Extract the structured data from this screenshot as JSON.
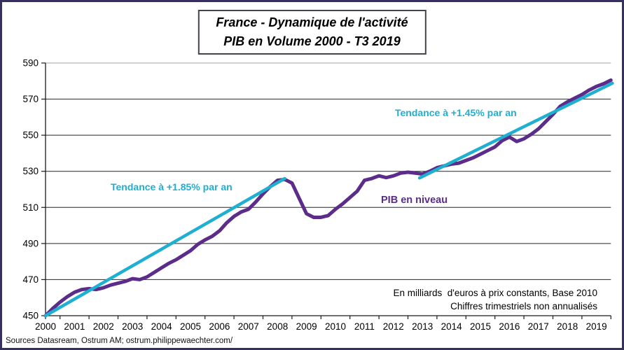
{
  "frame": {
    "border_color": "#36305f",
    "background": "#ffffff"
  },
  "title": {
    "line1": "France - Dynamique de l'activité",
    "line2": "PIB en Volume 2000 - T3 2019"
  },
  "annotations": {
    "trend1_label": "Tendance à +1.85% par an",
    "trend2_label": "Tendance à +1.45% par an",
    "series_label": "PIB en niveau",
    "unit_line1": "En milliards  d'euros à prix constants, Base 2010",
    "unit_line2": "Chiffres trimestriels non annualisés"
  },
  "source": "Sources Datasream, Ostrum AM; ostrum.philippewaechter.com/",
  "chart_data": {
    "type": "line",
    "title": "France - Dynamique de l'activité PIB en Volume 2000 - T3 2019",
    "x_frequency": "quarterly",
    "x_range_label": "2000 - T3 2019",
    "xticks": [
      2000,
      2001,
      2002,
      2003,
      2004,
      2005,
      2006,
      2007,
      2008,
      2009,
      2010,
      2011,
      2012,
      2013,
      2014,
      2015,
      2016,
      2017,
      2018,
      2019
    ],
    "ylim": [
      450,
      590
    ],
    "yticks": [
      450,
      470,
      490,
      510,
      530,
      550,
      570,
      590
    ],
    "grid": "horizontal",
    "legend": "inline-labels",
    "series": [
      {
        "name": "PIB en niveau",
        "color": "#5B2C8A",
        "start": "2000-Q1",
        "end": "2019-Q3",
        "values": [
          450.0,
          454.0,
          457.5,
          460.5,
          463.0,
          464.5,
          465.0,
          464.5,
          465.5,
          467.0,
          468.0,
          469.0,
          470.5,
          470.0,
          471.5,
          474.0,
          476.5,
          479.0,
          481.0,
          483.5,
          486.0,
          489.5,
          492.0,
          494.0,
          497.0,
          501.5,
          505.0,
          507.5,
          509.0,
          513.0,
          517.5,
          521.5,
          525.0,
          525.5,
          523.5,
          515.0,
          506.5,
          504.5,
          504.5,
          505.5,
          509.0,
          512.0,
          515.5,
          519.0,
          525.0,
          526.0,
          527.5,
          526.5,
          527.5,
          529.0,
          529.5,
          529.0,
          528.5,
          530.0,
          532.0,
          533.0,
          534.0,
          534.5,
          536.0,
          537.5,
          539.5,
          541.5,
          543.5,
          547.0,
          549.0,
          546.5,
          548.0,
          550.5,
          553.5,
          557.5,
          561.5,
          566.0,
          568.5,
          570.5,
          572.5,
          575.0,
          577.0,
          578.5,
          580.5
        ]
      }
    ],
    "trends": [
      {
        "name": "Tendance à +1.85% par an",
        "rate_per_year": 1.85,
        "color": "#1FAFD0",
        "start": {
          "year": 2000.0,
          "value": 450.0
        },
        "end": {
          "year": 2008.25,
          "value": 526.0
        }
      },
      {
        "name": "Tendance à +1.45% par an",
        "rate_per_year": 1.45,
        "color": "#1FAFD0",
        "start": {
          "year": 2012.9,
          "value": 526.3
        },
        "end": {
          "year": 2019.55,
          "value": 578.8
        }
      }
    ]
  }
}
